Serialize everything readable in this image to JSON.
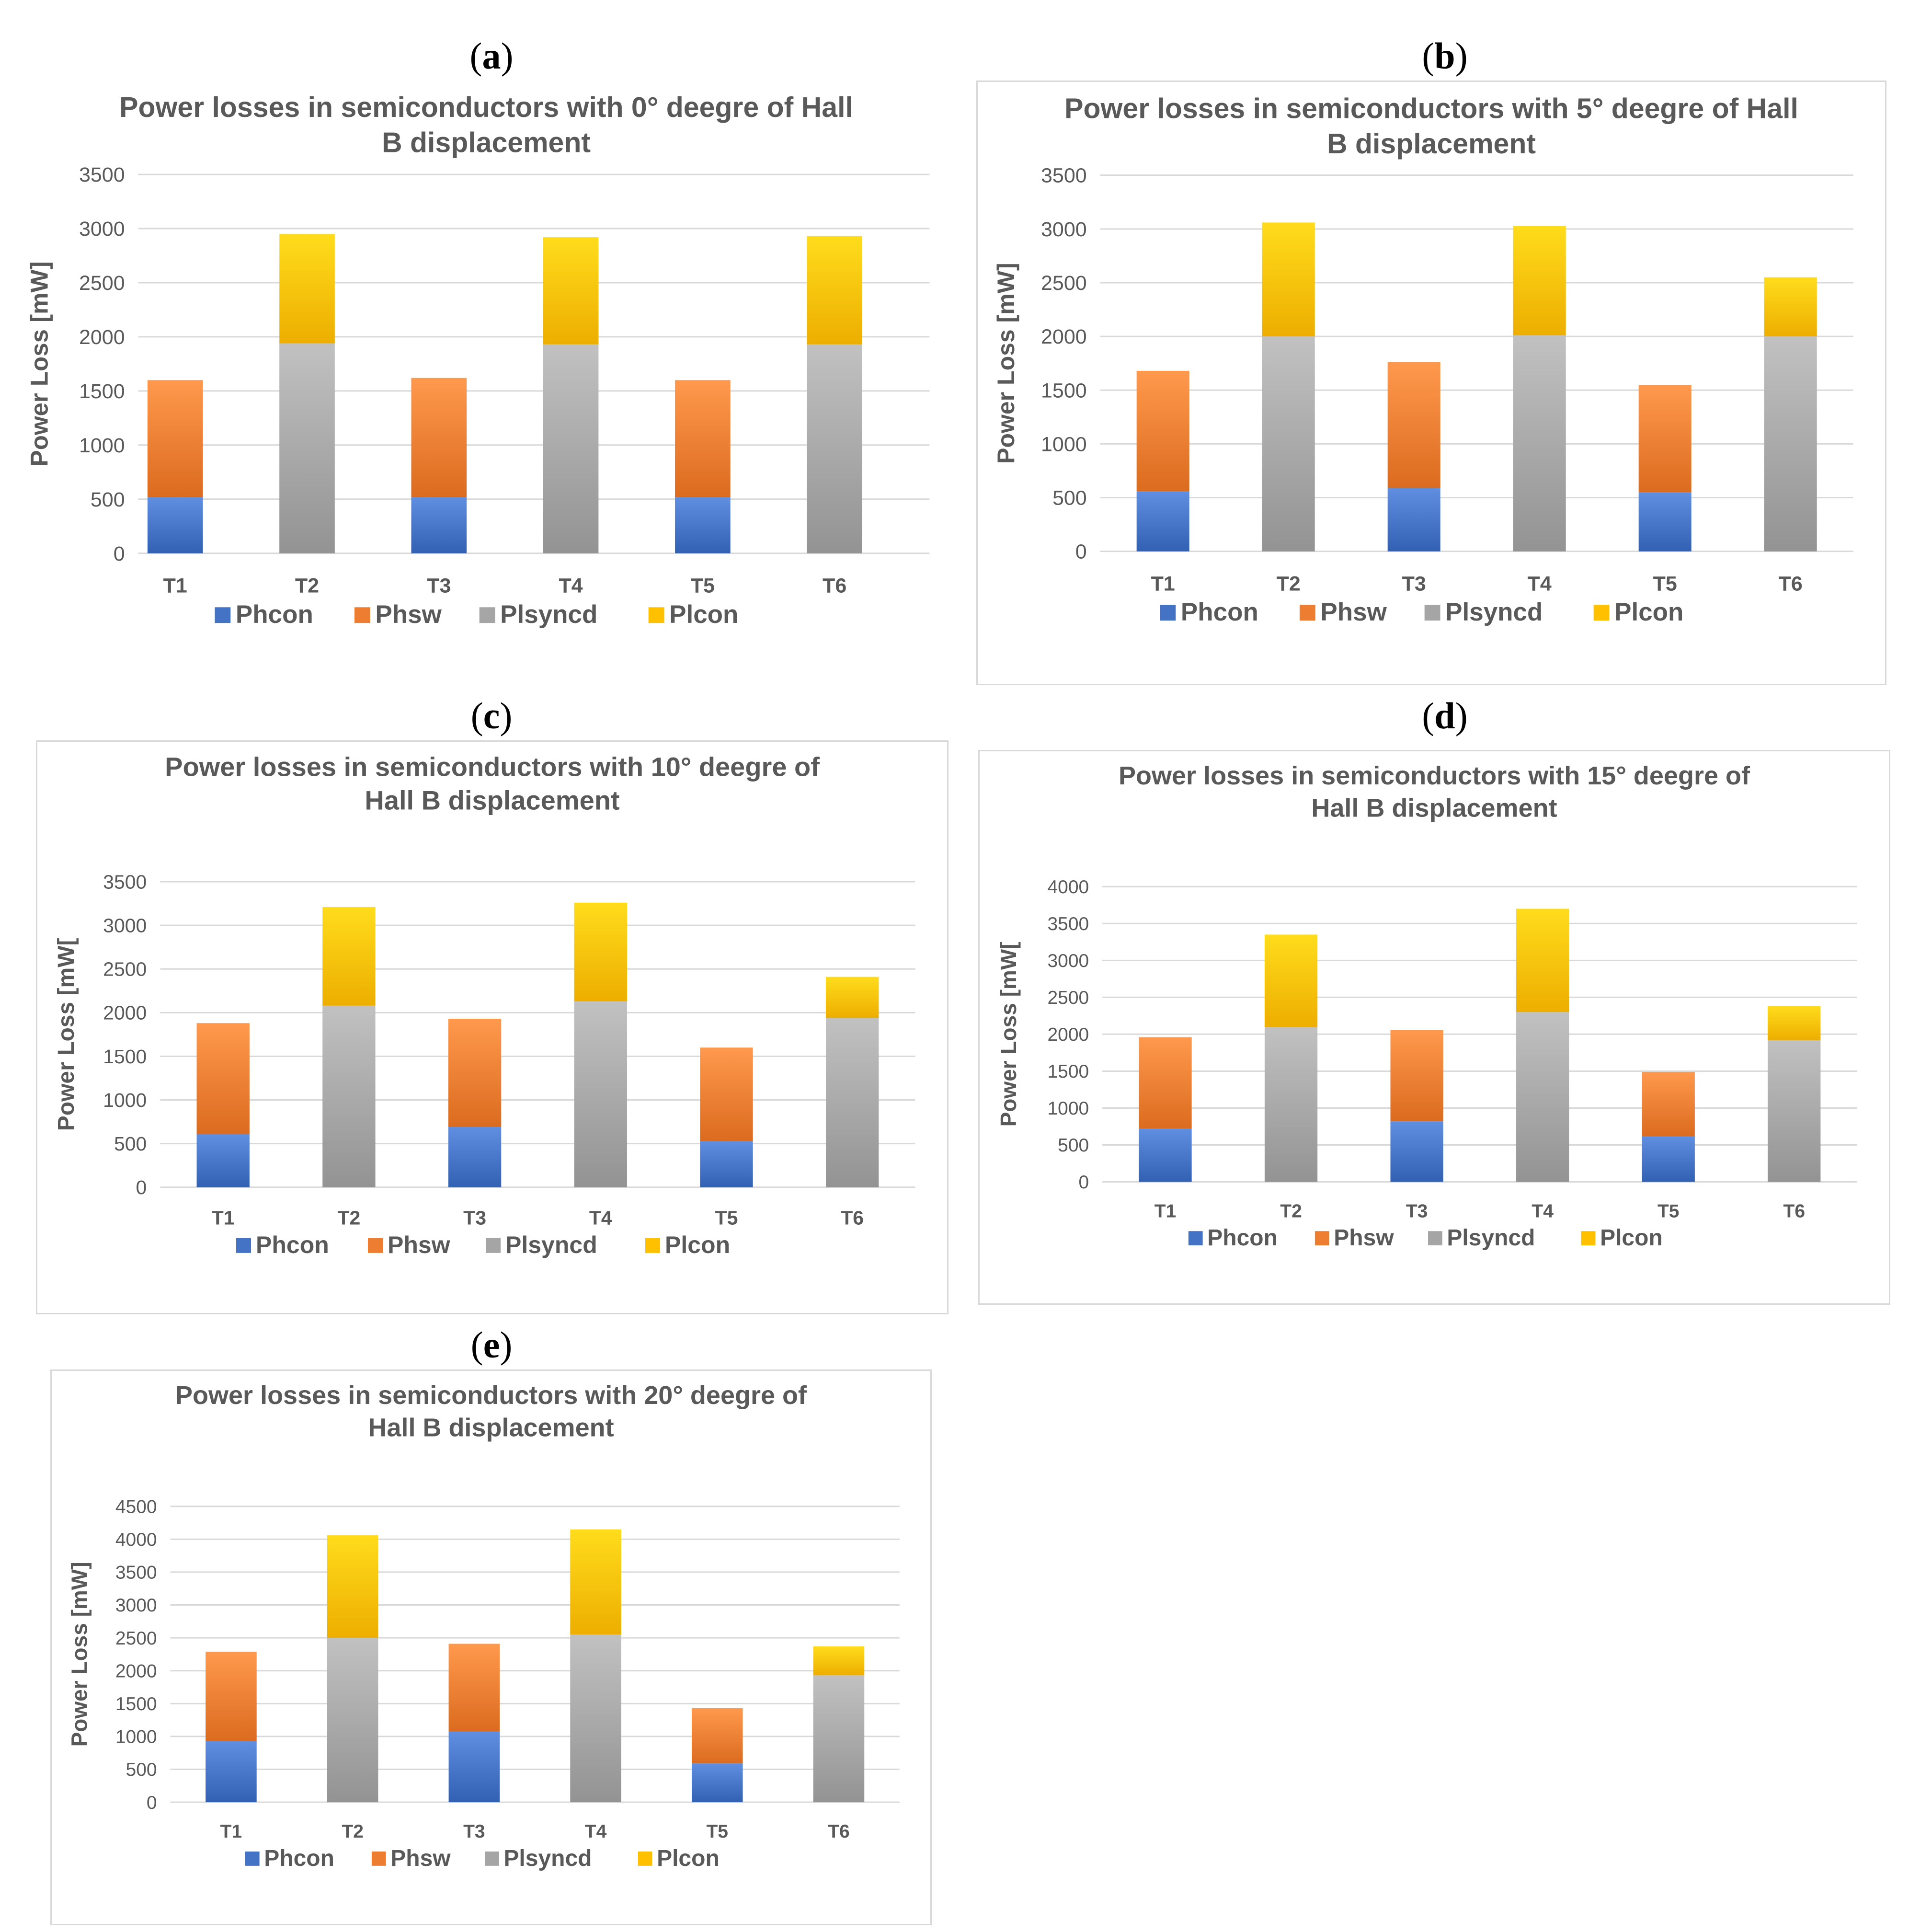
{
  "panels": [
    {
      "letter": "a"
    },
    {
      "letter": "b"
    },
    {
      "letter": "c"
    },
    {
      "letter": "d"
    },
    {
      "letter": "e"
    }
  ],
  "colors": {
    "Phcon": "#4472c4",
    "Phsw": "#ed7d31",
    "Plsyncd": "#a5a5a5",
    "Plcon": "#ffc000"
  },
  "chart_data": [
    {
      "type": "bar",
      "stacked": true,
      "title_line1": "Power losses in semiconductors with 0°  deegre of Hall",
      "title_line2": "B displacement",
      "ylabel": "Power Loss [mW]",
      "ylim": [
        0,
        3500
      ],
      "yticks": [
        0,
        500,
        1000,
        1500,
        2000,
        2500,
        3000,
        3500
      ],
      "categories": [
        "T1",
        "T2",
        "T3",
        "T4",
        "T5",
        "T6"
      ],
      "series": [
        {
          "name": "Phcon",
          "values": [
            520,
            0,
            520,
            0,
            520,
            0
          ]
        },
        {
          "name": "Phsw",
          "values": [
            1080,
            0,
            1100,
            0,
            1080,
            0
          ]
        },
        {
          "name": "Plsyncd",
          "values": [
            0,
            1940,
            0,
            1930,
            0,
            1930
          ]
        },
        {
          "name": "Plcon",
          "values": [
            0,
            1010,
            0,
            990,
            0,
            1000
          ]
        }
      ],
      "legend": "bottom"
    },
    {
      "type": "bar",
      "stacked": true,
      "title_line1": "Power losses in semiconductors with 5°  deegre of Hall",
      "title_line2": "B displacement",
      "ylabel": "Power Loss [mW]",
      "ylim": [
        0,
        3500
      ],
      "yticks": [
        0,
        500,
        1000,
        1500,
        2000,
        2500,
        3000,
        3500
      ],
      "categories": [
        "T1",
        "T2",
        "T3",
        "T4",
        "T5",
        "T6"
      ],
      "series": [
        {
          "name": "Phcon",
          "values": [
            560,
            0,
            590,
            0,
            550,
            0
          ]
        },
        {
          "name": "Phsw",
          "values": [
            1120,
            0,
            1170,
            0,
            1000,
            0
          ]
        },
        {
          "name": "Plsyncd",
          "values": [
            0,
            2000,
            0,
            2010,
            0,
            2000
          ]
        },
        {
          "name": "Plcon",
          "values": [
            0,
            1060,
            0,
            1020,
            0,
            550
          ]
        }
      ],
      "legend": "bottom"
    },
    {
      "type": "bar",
      "stacked": true,
      "title_line1": "Power losses in semiconductors with 10°  deegre of",
      "title_line2": "Hall B displacement",
      "ylabel": "Power Loss [mW[",
      "ylim": [
        0,
        3500
      ],
      "yticks": [
        0,
        500,
        1000,
        1500,
        2000,
        2500,
        3000,
        3500
      ],
      "categories": [
        "T1",
        "T2",
        "T3",
        "T4",
        "T5",
        "T6"
      ],
      "series": [
        {
          "name": "Phcon",
          "values": [
            610,
            0,
            690,
            0,
            530,
            0
          ]
        },
        {
          "name": "Phsw",
          "values": [
            1270,
            0,
            1240,
            0,
            1070,
            0
          ]
        },
        {
          "name": "Plsyncd",
          "values": [
            0,
            2080,
            0,
            2130,
            0,
            1940
          ]
        },
        {
          "name": "Plcon",
          "values": [
            0,
            1130,
            0,
            1130,
            0,
            470
          ]
        }
      ],
      "legend": "bottom"
    },
    {
      "type": "bar",
      "stacked": true,
      "title_line1": "Power losses in semiconductors with 15°  deegre of",
      "title_line2": "Hall B displacement",
      "ylabel": "Power Loss [mW[",
      "ylim": [
        0,
        4000
      ],
      "yticks": [
        0,
        500,
        1000,
        1500,
        2000,
        2500,
        3000,
        3500,
        4000
      ],
      "categories": [
        "T1",
        "T2",
        "T3",
        "T4",
        "T5",
        "T6"
      ],
      "series": [
        {
          "name": "Phcon",
          "values": [
            720,
            0,
            820,
            0,
            620,
            0
          ]
        },
        {
          "name": "Phsw",
          "values": [
            1240,
            0,
            1240,
            0,
            870,
            0
          ]
        },
        {
          "name": "Plsyncd",
          "values": [
            0,
            2100,
            0,
            2300,
            0,
            1920
          ]
        },
        {
          "name": "Plcon",
          "values": [
            0,
            1250,
            0,
            1400,
            0,
            460
          ]
        }
      ],
      "legend": "bottom"
    },
    {
      "type": "bar",
      "stacked": true,
      "title_line1": "Power losses in semiconductors with 20°  deegre of",
      "title_line2": "Hall B displacement",
      "ylabel": "Power Loss [mW]",
      "ylim": [
        0,
        4500
      ],
      "yticks": [
        0,
        500,
        1000,
        1500,
        2000,
        2500,
        3000,
        3500,
        4000,
        4500
      ],
      "categories": [
        "T1",
        "T2",
        "T3",
        "T4",
        "T5",
        "T6"
      ],
      "series": [
        {
          "name": "Phcon",
          "values": [
            930,
            0,
            1080,
            0,
            590,
            0
          ]
        },
        {
          "name": "Phsw",
          "values": [
            1360,
            0,
            1330,
            0,
            840,
            0
          ]
        },
        {
          "name": "Plsyncd",
          "values": [
            0,
            2500,
            0,
            2550,
            0,
            1930
          ]
        },
        {
          "name": "Plcon",
          "values": [
            0,
            1560,
            0,
            1600,
            0,
            440
          ]
        }
      ],
      "legend": "bottom"
    }
  ]
}
